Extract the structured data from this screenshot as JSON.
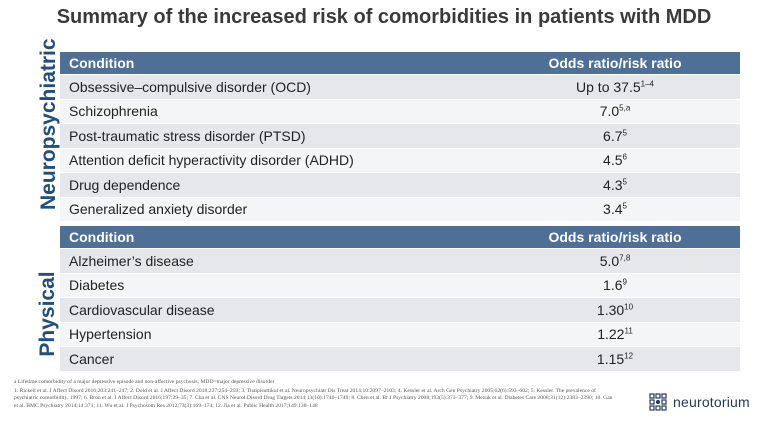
{
  "title": "Summary of the increased risk of comorbidities in patients with MDD",
  "sections": [
    {
      "label": "Neuropsychiatric",
      "header": {
        "condition": "Condition",
        "ratio": "Odds ratio/risk ratio"
      },
      "rows": [
        {
          "condition": "Obsessive–compulsive disorder (OCD)",
          "value": "Up to 37.5",
          "ref": "1–4"
        },
        {
          "condition": "Schizophrenia",
          "value": "7.0",
          "ref": "5,a"
        },
        {
          "condition": "Post-traumatic stress disorder (PTSD)",
          "value": "6.7",
          "ref": "5"
        },
        {
          "condition": "Attention deficit hyperactivity disorder (ADHD)",
          "value": "4.5",
          "ref": "6"
        },
        {
          "condition": "Drug dependence",
          "value": "4.3",
          "ref": "5"
        },
        {
          "condition": "Generalized anxiety disorder",
          "value": "3.4",
          "ref": "5"
        }
      ]
    },
    {
      "label": "Physical",
      "header": {
        "condition": "Condition",
        "ratio": "Odds ratio/risk ratio"
      },
      "rows": [
        {
          "condition": "Alzheimer’s disease",
          "value": "5.0",
          "ref": "7,8"
        },
        {
          "condition": "Diabetes",
          "value": "1.6",
          "ref": "9"
        },
        {
          "condition": "Cardiovascular disease",
          "value": "1.30",
          "ref": "10"
        },
        {
          "condition": "Hypertension",
          "value": "1.22",
          "ref": "11"
        },
        {
          "condition": "Cancer",
          "value": "1.15",
          "ref": "12"
        }
      ]
    }
  ],
  "footnote": {
    "abbrev": "a Lifetime comorbidity of a major depressive episode and non-affective psychosis; MDD=major depressive disorder",
    "refs": "1. Rickelt et al. J Affect Disord 2016;203:241–247; 2. Dold et al. J Affect Disord 2018;227:254–259; 3. Thaipisuttikul et al. Neuropsychiatr Dis Treat 2014;10:2097–2103; 4. Kessler et al. Arch Gen Psychiatry 2005;62(6):593–602; 5. Kessler. The prevalence of psychiatric comorbidity. 1997; 6. Bron et al. J Affect Disord 2016;197:29–35; 7. Cha et al. CNS Neurol Disord Drug Targets 2014;13(10):1740–1749; 8. Chen et al. Br J Psychiatry 2008;193(5):373–377; 9. Mezuk et al. Diabetes Care 2008;31(12):2383–2390; 10. Gan et al. BMC Psychiatry 2014;14:371; 11. Wu et al. J Psychosom Res 2012;73(3):169–174; 12. Jia et al. Public Health 2017;149:138–148"
  },
  "logo": {
    "text": "neurotorium",
    "icon": "neurotorium-logo-icon"
  }
}
